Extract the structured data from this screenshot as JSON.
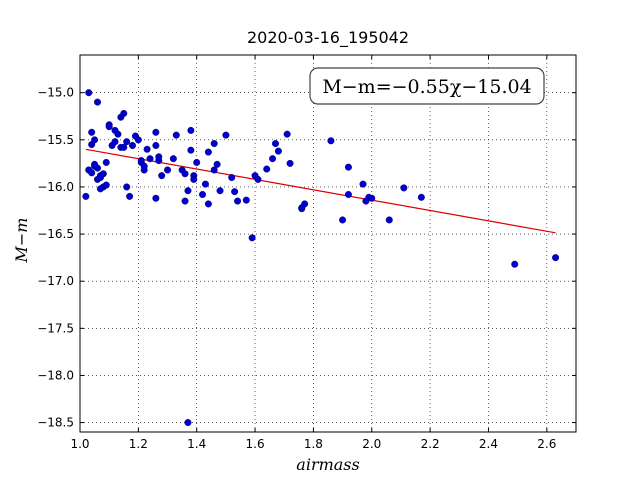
{
  "chart_data": {
    "type": "scatter",
    "title": "2020-03-16_195042",
    "xlabel": "airmass",
    "ylabel": "M−m",
    "xlim": [
      1.0,
      2.7
    ],
    "ylim": [
      -18.6,
      -14.6
    ],
    "xticks": [
      1.0,
      1.2,
      1.4,
      1.6,
      1.8,
      2.0,
      2.2,
      2.4,
      2.6
    ],
    "xtick_labels": [
      "1.0",
      "1.2",
      "1.4",
      "1.6",
      "1.8",
      "2.0",
      "2.2",
      "2.4",
      "2.6"
    ],
    "yticks": [
      -15.0,
      -15.5,
      -16.0,
      -16.5,
      -17.0,
      -17.5,
      -18.0,
      -18.5
    ],
    "ytick_labels": [
      "−15.0",
      "−15.5",
      "−16.0",
      "−16.5",
      "−17.0",
      "−17.5",
      "−18.0",
      "−18.5"
    ],
    "grid": true,
    "annotation": "M−m=−0.55χ−15.04",
    "fit": {
      "slope": -0.55,
      "intercept": -15.04,
      "x_range": [
        1.02,
        2.63
      ],
      "color": "#dd0000"
    },
    "point_color": "#0000cc",
    "series": [
      {
        "x": [
          1.02,
          1.03,
          1.04,
          1.04,
          1.05,
          1.06,
          1.03,
          1.04,
          1.05,
          1.07,
          1.06,
          1.05,
          1.06,
          1.07,
          1.08,
          1.08,
          1.09,
          1.07,
          1.1,
          1.12,
          1.11,
          1.12,
          1.13,
          1.14,
          1.15,
          1.15,
          1.16,
          1.17,
          1.18,
          1.19,
          1.2,
          1.21,
          1.21,
          1.22,
          1.23,
          1.24,
          1.26,
          1.26,
          1.27,
          1.28,
          1.26,
          1.22,
          1.27,
          1.3,
          1.32,
          1.33,
          1.35,
          1.36,
          1.37,
          1.38,
          1.38,
          1.39,
          1.4,
          1.42,
          1.43,
          1.44,
          1.44,
          1.46,
          1.46,
          1.47,
          1.48,
          1.5,
          1.52,
          1.53,
          1.54,
          1.57,
          1.59,
          1.6,
          1.61,
          1.64,
          1.66,
          1.67,
          1.68,
          1.71,
          1.72,
          1.76,
          1.76,
          1.77,
          1.86,
          1.9,
          1.92,
          1.92,
          1.97,
          1.98,
          1.99,
          2.0,
          2.06,
          2.11,
          2.17,
          2.49,
          2.63,
          1.37,
          1.1,
          1.16,
          1.09,
          1.14,
          1.36,
          1.39
        ],
        "y": [
          -16.1,
          -15.0,
          -15.55,
          -15.42,
          -15.5,
          -15.1,
          -15.82,
          -15.85,
          -15.78,
          -15.88,
          -15.8,
          -15.76,
          -15.92,
          -15.9,
          -15.86,
          -16.0,
          -15.74,
          -16.02,
          -15.34,
          -15.4,
          -15.56,
          -15.52,
          -15.44,
          -15.26,
          -15.22,
          -15.58,
          -16.0,
          -16.1,
          -15.56,
          -15.46,
          -15.5,
          -15.74,
          -15.72,
          -15.82,
          -15.6,
          -15.7,
          -15.56,
          -15.42,
          -15.68,
          -15.88,
          -16.12,
          -15.78,
          -15.72,
          -15.82,
          -15.7,
          -15.45,
          -15.82,
          -16.15,
          -16.04,
          -15.61,
          -15.4,
          -15.88,
          -15.74,
          -16.08,
          -15.97,
          -15.63,
          -16.18,
          -15.54,
          -15.82,
          -15.76,
          -16.04,
          -15.45,
          -15.9,
          -16.05,
          -16.15,
          -16.14,
          -16.54,
          -15.88,
          -15.92,
          -15.81,
          -15.7,
          -15.54,
          -15.62,
          -15.44,
          -15.75,
          -16.23,
          -16.22,
          -16.18,
          -15.51,
          -16.35,
          -15.79,
          -16.08,
          -15.97,
          -16.15,
          -16.11,
          -16.12,
          -16.35,
          -16.01,
          -16.11,
          -16.82,
          -16.75,
          -18.5,
          -15.36,
          -15.52,
          -15.98,
          -15.58,
          -15.86,
          -15.92
        ]
      }
    ]
  }
}
